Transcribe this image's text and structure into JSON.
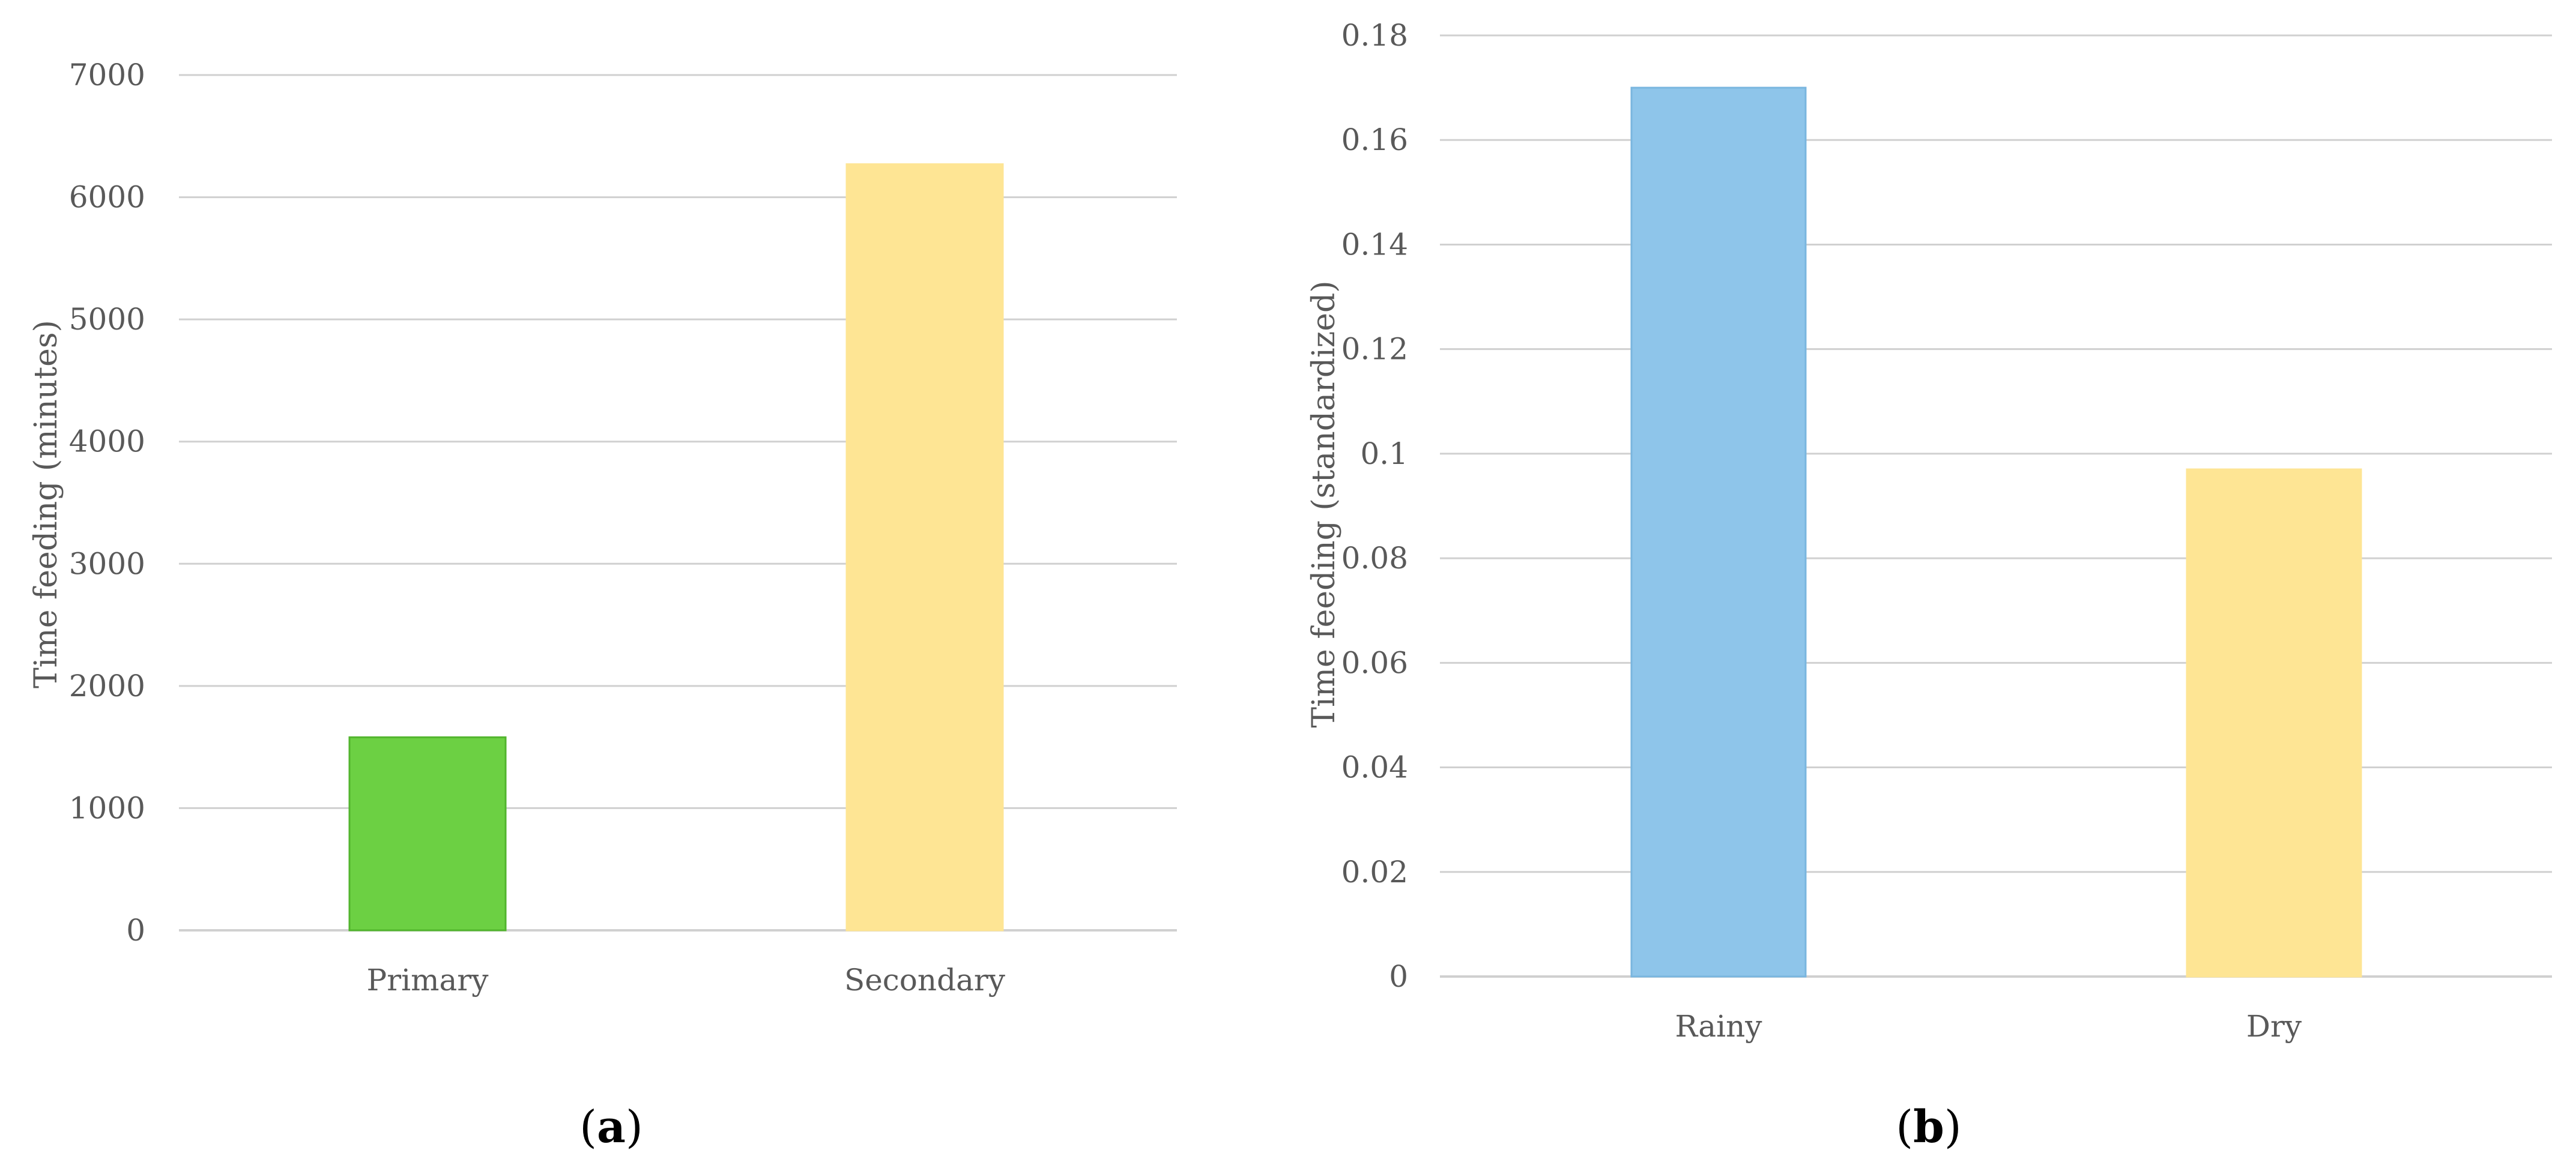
{
  "chart_data": [
    {
      "type": "bar",
      "panel_label": "(a)",
      "categories": [
        "Primary",
        "Secondary"
      ],
      "values": [
        1580,
        6270
      ],
      "bar_colors": [
        "#6cd043",
        "#fee594"
      ],
      "bar_edge_colors": [
        "#52b52e",
        "#fee594"
      ],
      "xlabel": "",
      "ylabel": "Time feeding (minutes)",
      "ylim": [
        0,
        7000
      ],
      "yticks": [
        "0",
        "1000",
        "2000",
        "3000",
        "4000",
        "5000",
        "6000",
        "7000"
      ],
      "grid": true,
      "legend": false
    },
    {
      "type": "bar",
      "panel_label": "(b)",
      "categories": [
        "Rainy",
        "Dry"
      ],
      "values": [
        0.17,
        0.097
      ],
      "bar_colors": [
        "#8ec5ea",
        "#fee594"
      ],
      "bar_edge_colors": [
        "#7ab6df",
        "#fee594"
      ],
      "xlabel": "",
      "ylabel": "Time feeding (standardized)",
      "ylim": [
        0,
        0.18
      ],
      "yticks": [
        "0",
        "0.02",
        "0.04",
        "0.06",
        "0.08",
        "0.1",
        "0.12",
        "0.14",
        "0.16",
        "0.18"
      ],
      "grid": true,
      "legend": false
    }
  ]
}
